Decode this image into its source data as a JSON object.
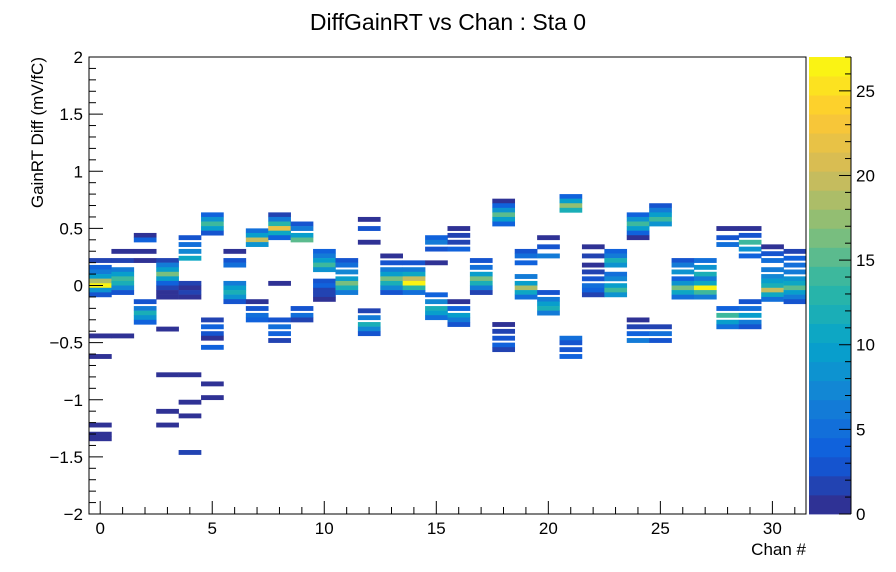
{
  "chart_data": {
    "type": "heatmap",
    "title": "DiffGainRT vs Chan : Sta 0",
    "xlabel": "Chan #",
    "ylabel": "GainRT Diff (mV/fC)",
    "xlim": [
      -0.5,
      31.5
    ],
    "ylim": [
      -2,
      2
    ],
    "bin_width_x": 1,
    "bin_width_y": 0.04,
    "x_ticks": [
      0,
      5,
      10,
      15,
      20,
      25,
      30
    ],
    "x_tick_labels": [
      "0",
      "5",
      "10",
      "15",
      "20",
      "25",
      "30"
    ],
    "y_ticks": [
      -2,
      -1.5,
      -1,
      -0.5,
      0,
      0.5,
      1,
      1.5,
      2
    ],
    "y_tick_labels": [
      "−2",
      "−1.5",
      "−1",
      "−0.5",
      "0",
      "0.5",
      "1",
      "1.5",
      "2"
    ],
    "z_range": [
      0,
      27
    ],
    "z_ticks": [
      0,
      5,
      10,
      15,
      20,
      25
    ],
    "z_tick_labels": [
      "0",
      "5",
      "10",
      "15",
      "20",
      "25"
    ],
    "grid": false,
    "colorbar": "right",
    "colorscale": [
      "#352a87",
      "#0f5cdd",
      "#1481d6",
      "#06a4ca",
      "#2eb7a4",
      "#87bf77",
      "#d1bb59",
      "#fec832",
      "#f9fb0e"
    ],
    "cells": [
      [
        0,
        0.22,
        2
      ],
      [
        0,
        0.16,
        4
      ],
      [
        0,
        0.12,
        6
      ],
      [
        0,
        0.08,
        10
      ],
      [
        0,
        0.04,
        18
      ],
      [
        0,
        0.0,
        26
      ],
      [
        0,
        -0.04,
        8
      ],
      [
        0,
        -0.08,
        3
      ],
      [
        0,
        -0.44,
        1
      ],
      [
        0,
        -0.62,
        1
      ],
      [
        0,
        -1.22,
        1
      ],
      [
        0,
        -1.3,
        1
      ],
      [
        0,
        -1.34,
        1
      ],
      [
        1,
        0.3,
        1
      ],
      [
        1,
        0.22,
        2
      ],
      [
        1,
        0.14,
        6
      ],
      [
        1,
        0.1,
        9
      ],
      [
        1,
        0.06,
        14
      ],
      [
        1,
        0.02,
        12
      ],
      [
        1,
        -0.02,
        7
      ],
      [
        1,
        -0.06,
        3
      ],
      [
        1,
        -0.44,
        1
      ],
      [
        2,
        0.44,
        1
      ],
      [
        2,
        0.4,
        4
      ],
      [
        2,
        0.3,
        1
      ],
      [
        2,
        0.22,
        1
      ],
      [
        2,
        -0.14,
        3
      ],
      [
        2,
        -0.2,
        6
      ],
      [
        2,
        -0.24,
        12
      ],
      [
        2,
        -0.28,
        8
      ],
      [
        2,
        -0.32,
        4
      ],
      [
        3,
        0.22,
        2
      ],
      [
        3,
        0.18,
        6
      ],
      [
        3,
        0.14,
        10
      ],
      [
        3,
        0.1,
        16
      ],
      [
        3,
        0.06,
        9
      ],
      [
        3,
        0.02,
        4
      ],
      [
        3,
        -0.02,
        2
      ],
      [
        3,
        -0.06,
        1
      ],
      [
        3,
        -0.1,
        1
      ],
      [
        3,
        -0.38,
        1
      ],
      [
        3,
        -0.78,
        1
      ],
      [
        3,
        -1.1,
        1
      ],
      [
        3,
        -1.22,
        1
      ],
      [
        4,
        0.42,
        3
      ],
      [
        4,
        0.36,
        5
      ],
      [
        4,
        0.3,
        7
      ],
      [
        4,
        0.24,
        11
      ],
      [
        4,
        0.02,
        2
      ],
      [
        4,
        -0.02,
        1
      ],
      [
        4,
        -0.06,
        2
      ],
      [
        4,
        -0.1,
        1
      ],
      [
        4,
        -0.78,
        1
      ],
      [
        4,
        -1.02,
        1
      ],
      [
        4,
        -1.14,
        1
      ],
      [
        4,
        -1.46,
        2
      ],
      [
        5,
        0.62,
        4
      ],
      [
        5,
        0.58,
        8
      ],
      [
        5,
        0.54,
        14
      ],
      [
        5,
        0.5,
        9
      ],
      [
        5,
        0.46,
        3
      ],
      [
        5,
        -0.3,
        2
      ],
      [
        5,
        -0.36,
        4
      ],
      [
        5,
        -0.42,
        3
      ],
      [
        5,
        -0.46,
        1
      ],
      [
        5,
        -0.54,
        4
      ],
      [
        5,
        -0.86,
        1
      ],
      [
        5,
        -0.98,
        1
      ],
      [
        6,
        0.3,
        1
      ],
      [
        6,
        0.22,
        3
      ],
      [
        6,
        0.18,
        5
      ],
      [
        6,
        0.02,
        6
      ],
      [
        6,
        -0.02,
        9
      ],
      [
        6,
        -0.06,
        12
      ],
      [
        6,
        -0.1,
        8
      ],
      [
        6,
        -0.14,
        3
      ],
      [
        7,
        0.48,
        5
      ],
      [
        7,
        0.44,
        10
      ],
      [
        7,
        0.4,
        20
      ],
      [
        7,
        0.36,
        8
      ],
      [
        7,
        -0.14,
        1
      ],
      [
        7,
        -0.2,
        3
      ],
      [
        7,
        -0.26,
        5
      ],
      [
        7,
        -0.3,
        4
      ],
      [
        8,
        0.62,
        2
      ],
      [
        8,
        0.58,
        6
      ],
      [
        8,
        0.54,
        13
      ],
      [
        8,
        0.5,
        22
      ],
      [
        8,
        0.46,
        11
      ],
      [
        8,
        0.42,
        4
      ],
      [
        8,
        0.02,
        1
      ],
      [
        8,
        -0.3,
        3
      ],
      [
        8,
        -0.36,
        5
      ],
      [
        8,
        -0.42,
        4
      ],
      [
        8,
        -0.48,
        2
      ],
      [
        9,
        0.54,
        3
      ],
      [
        9,
        0.5,
        6
      ],
      [
        9,
        0.44,
        10
      ],
      [
        9,
        0.4,
        15
      ],
      [
        9,
        -0.2,
        3
      ],
      [
        9,
        -0.26,
        5
      ],
      [
        9,
        -0.3,
        2
      ],
      [
        10,
        0.3,
        4
      ],
      [
        10,
        0.26,
        6
      ],
      [
        10,
        0.22,
        9
      ],
      [
        10,
        0.18,
        14
      ],
      [
        10,
        0.14,
        8
      ],
      [
        10,
        0.04,
        3
      ],
      [
        10,
        0.0,
        4
      ],
      [
        10,
        -0.04,
        2
      ],
      [
        10,
        -0.08,
        2
      ],
      [
        10,
        -0.12,
        1
      ],
      [
        11,
        0.22,
        3
      ],
      [
        11,
        0.18,
        5
      ],
      [
        11,
        0.12,
        7
      ],
      [
        11,
        0.06,
        10
      ],
      [
        11,
        0.02,
        16
      ],
      [
        11,
        -0.02,
        12
      ],
      [
        11,
        -0.06,
        6
      ],
      [
        12,
        0.58,
        1
      ],
      [
        12,
        0.5,
        3
      ],
      [
        12,
        0.38,
        1
      ],
      [
        12,
        -0.22,
        2
      ],
      [
        12,
        -0.28,
        6
      ],
      [
        12,
        -0.34,
        12
      ],
      [
        12,
        -0.38,
        7
      ],
      [
        12,
        -0.42,
        3
      ],
      [
        13,
        0.26,
        1
      ],
      [
        13,
        0.2,
        3
      ],
      [
        13,
        0.14,
        6
      ],
      [
        13,
        0.1,
        10
      ],
      [
        13,
        0.06,
        16
      ],
      [
        13,
        0.02,
        12
      ],
      [
        13,
        -0.02,
        7
      ],
      [
        13,
        -0.06,
        3
      ],
      [
        14,
        0.2,
        3
      ],
      [
        14,
        0.14,
        6
      ],
      [
        14,
        0.1,
        11
      ],
      [
        14,
        0.06,
        20
      ],
      [
        14,
        0.02,
        26
      ],
      [
        14,
        -0.02,
        13
      ],
      [
        14,
        -0.06,
        5
      ],
      [
        15,
        0.42,
        4
      ],
      [
        15,
        0.38,
        6
      ],
      [
        15,
        0.32,
        3
      ],
      [
        15,
        0.2,
        1
      ],
      [
        15,
        -0.08,
        4
      ],
      [
        15,
        -0.14,
        7
      ],
      [
        15,
        -0.2,
        12
      ],
      [
        15,
        -0.24,
        9
      ],
      [
        15,
        -0.28,
        5
      ],
      [
        16,
        0.5,
        1
      ],
      [
        16,
        0.44,
        2
      ],
      [
        16,
        0.38,
        2
      ],
      [
        16,
        0.32,
        4
      ],
      [
        16,
        -0.14,
        1
      ],
      [
        16,
        -0.2,
        4
      ],
      [
        16,
        -0.26,
        10
      ],
      [
        16,
        -0.3,
        6
      ],
      [
        16,
        -0.34,
        3
      ],
      [
        17,
        0.22,
        3
      ],
      [
        17,
        0.16,
        5
      ],
      [
        17,
        0.1,
        9
      ],
      [
        17,
        0.06,
        16
      ],
      [
        17,
        0.02,
        12
      ],
      [
        17,
        -0.02,
        6
      ],
      [
        17,
        -0.06,
        2
      ],
      [
        18,
        0.74,
        1
      ],
      [
        18,
        0.7,
        4
      ],
      [
        18,
        0.66,
        8
      ],
      [
        18,
        0.62,
        15
      ],
      [
        18,
        0.58,
        9
      ],
      [
        18,
        0.54,
        4
      ],
      [
        18,
        -0.34,
        1
      ],
      [
        18,
        -0.4,
        2
      ],
      [
        18,
        -0.46,
        3
      ],
      [
        18,
        -0.52,
        4
      ],
      [
        18,
        -0.56,
        2
      ],
      [
        19,
        0.3,
        3
      ],
      [
        19,
        0.26,
        5
      ],
      [
        19,
        0.2,
        4
      ],
      [
        19,
        0.08,
        6
      ],
      [
        19,
        0.02,
        10
      ],
      [
        19,
        -0.02,
        18
      ],
      [
        19,
        -0.06,
        11
      ],
      [
        19,
        -0.1,
        5
      ],
      [
        20,
        0.42,
        1
      ],
      [
        20,
        0.34,
        3
      ],
      [
        20,
        0.26,
        6
      ],
      [
        20,
        -0.06,
        3
      ],
      [
        20,
        -0.12,
        6
      ],
      [
        20,
        -0.16,
        10
      ],
      [
        20,
        -0.2,
        12
      ],
      [
        20,
        -0.24,
        6
      ],
      [
        21,
        0.78,
        4
      ],
      [
        21,
        0.74,
        10
      ],
      [
        21,
        0.7,
        17
      ],
      [
        21,
        0.66,
        12
      ],
      [
        21,
        -0.46,
        5
      ],
      [
        21,
        -0.5,
        3
      ],
      [
        21,
        -0.56,
        3
      ],
      [
        21,
        -0.62,
        4
      ],
      [
        22,
        0.34,
        1
      ],
      [
        22,
        0.26,
        2
      ],
      [
        22,
        0.18,
        1
      ],
      [
        22,
        0.12,
        2
      ],
      [
        22,
        0.06,
        3
      ],
      [
        22,
        0.0,
        5
      ],
      [
        22,
        -0.04,
        4
      ],
      [
        22,
        -0.08,
        2
      ],
      [
        23,
        0.3,
        4
      ],
      [
        23,
        0.26,
        6
      ],
      [
        23,
        0.22,
        12
      ],
      [
        23,
        0.18,
        8
      ],
      [
        23,
        0.1,
        5
      ],
      [
        23,
        0.06,
        7
      ],
      [
        23,
        0.0,
        10
      ],
      [
        23,
        -0.04,
        14
      ],
      [
        23,
        -0.08,
        8
      ],
      [
        24,
        0.62,
        4
      ],
      [
        24,
        0.58,
        8
      ],
      [
        24,
        0.54,
        14
      ],
      [
        24,
        0.5,
        10
      ],
      [
        24,
        0.46,
        4
      ],
      [
        24,
        0.42,
        1
      ],
      [
        24,
        -0.3,
        1
      ],
      [
        24,
        -0.36,
        2
      ],
      [
        24,
        -0.42,
        4
      ],
      [
        24,
        -0.48,
        6
      ],
      [
        25,
        0.7,
        3
      ],
      [
        25,
        0.66,
        6
      ],
      [
        25,
        0.62,
        10
      ],
      [
        25,
        0.58,
        14
      ],
      [
        25,
        0.54,
        8
      ],
      [
        25,
        -0.36,
        2
      ],
      [
        25,
        -0.42,
        5
      ],
      [
        25,
        -0.48,
        3
      ],
      [
        26,
        0.22,
        3
      ],
      [
        26,
        0.18,
        6
      ],
      [
        26,
        0.12,
        8
      ],
      [
        26,
        0.06,
        4
      ],
      [
        26,
        0.02,
        8
      ],
      [
        26,
        -0.02,
        16
      ],
      [
        26,
        -0.06,
        11
      ],
      [
        26,
        -0.1,
        5
      ],
      [
        27,
        0.22,
        5
      ],
      [
        27,
        0.16,
        8
      ],
      [
        27,
        0.1,
        12
      ],
      [
        27,
        0.06,
        6
      ],
      [
        27,
        0.02,
        11
      ],
      [
        27,
        -0.02,
        26
      ],
      [
        27,
        -0.06,
        14
      ],
      [
        27,
        -0.1,
        6
      ],
      [
        28,
        0.5,
        1
      ],
      [
        28,
        0.42,
        3
      ],
      [
        28,
        0.36,
        5
      ],
      [
        28,
        -0.2,
        4
      ],
      [
        28,
        -0.26,
        14
      ],
      [
        28,
        -0.32,
        10
      ],
      [
        28,
        -0.36,
        5
      ],
      [
        29,
        0.5,
        1
      ],
      [
        29,
        0.44,
        3
      ],
      [
        29,
        0.38,
        14
      ],
      [
        29,
        0.32,
        8
      ],
      [
        29,
        0.26,
        4
      ],
      [
        29,
        -0.14,
        3
      ],
      [
        29,
        -0.2,
        5
      ],
      [
        29,
        -0.26,
        9
      ],
      [
        29,
        -0.32,
        6
      ],
      [
        29,
        -0.36,
        3
      ],
      [
        30,
        0.34,
        1
      ],
      [
        30,
        0.28,
        3
      ],
      [
        30,
        0.22,
        5
      ],
      [
        30,
        0.14,
        6
      ],
      [
        30,
        0.08,
        7
      ],
      [
        30,
        0.04,
        10
      ],
      [
        30,
        0.0,
        12
      ],
      [
        30,
        -0.04,
        20
      ],
      [
        30,
        -0.08,
        11
      ],
      [
        30,
        -0.12,
        5
      ],
      [
        31,
        0.3,
        2
      ],
      [
        31,
        0.24,
        4
      ],
      [
        31,
        0.18,
        5
      ],
      [
        31,
        0.12,
        6
      ],
      [
        31,
        0.06,
        8
      ],
      [
        31,
        0.02,
        11
      ],
      [
        31,
        -0.02,
        15
      ],
      [
        31,
        -0.06,
        10
      ],
      [
        31,
        -0.1,
        6
      ],
      [
        31,
        -0.14,
        3
      ]
    ]
  }
}
